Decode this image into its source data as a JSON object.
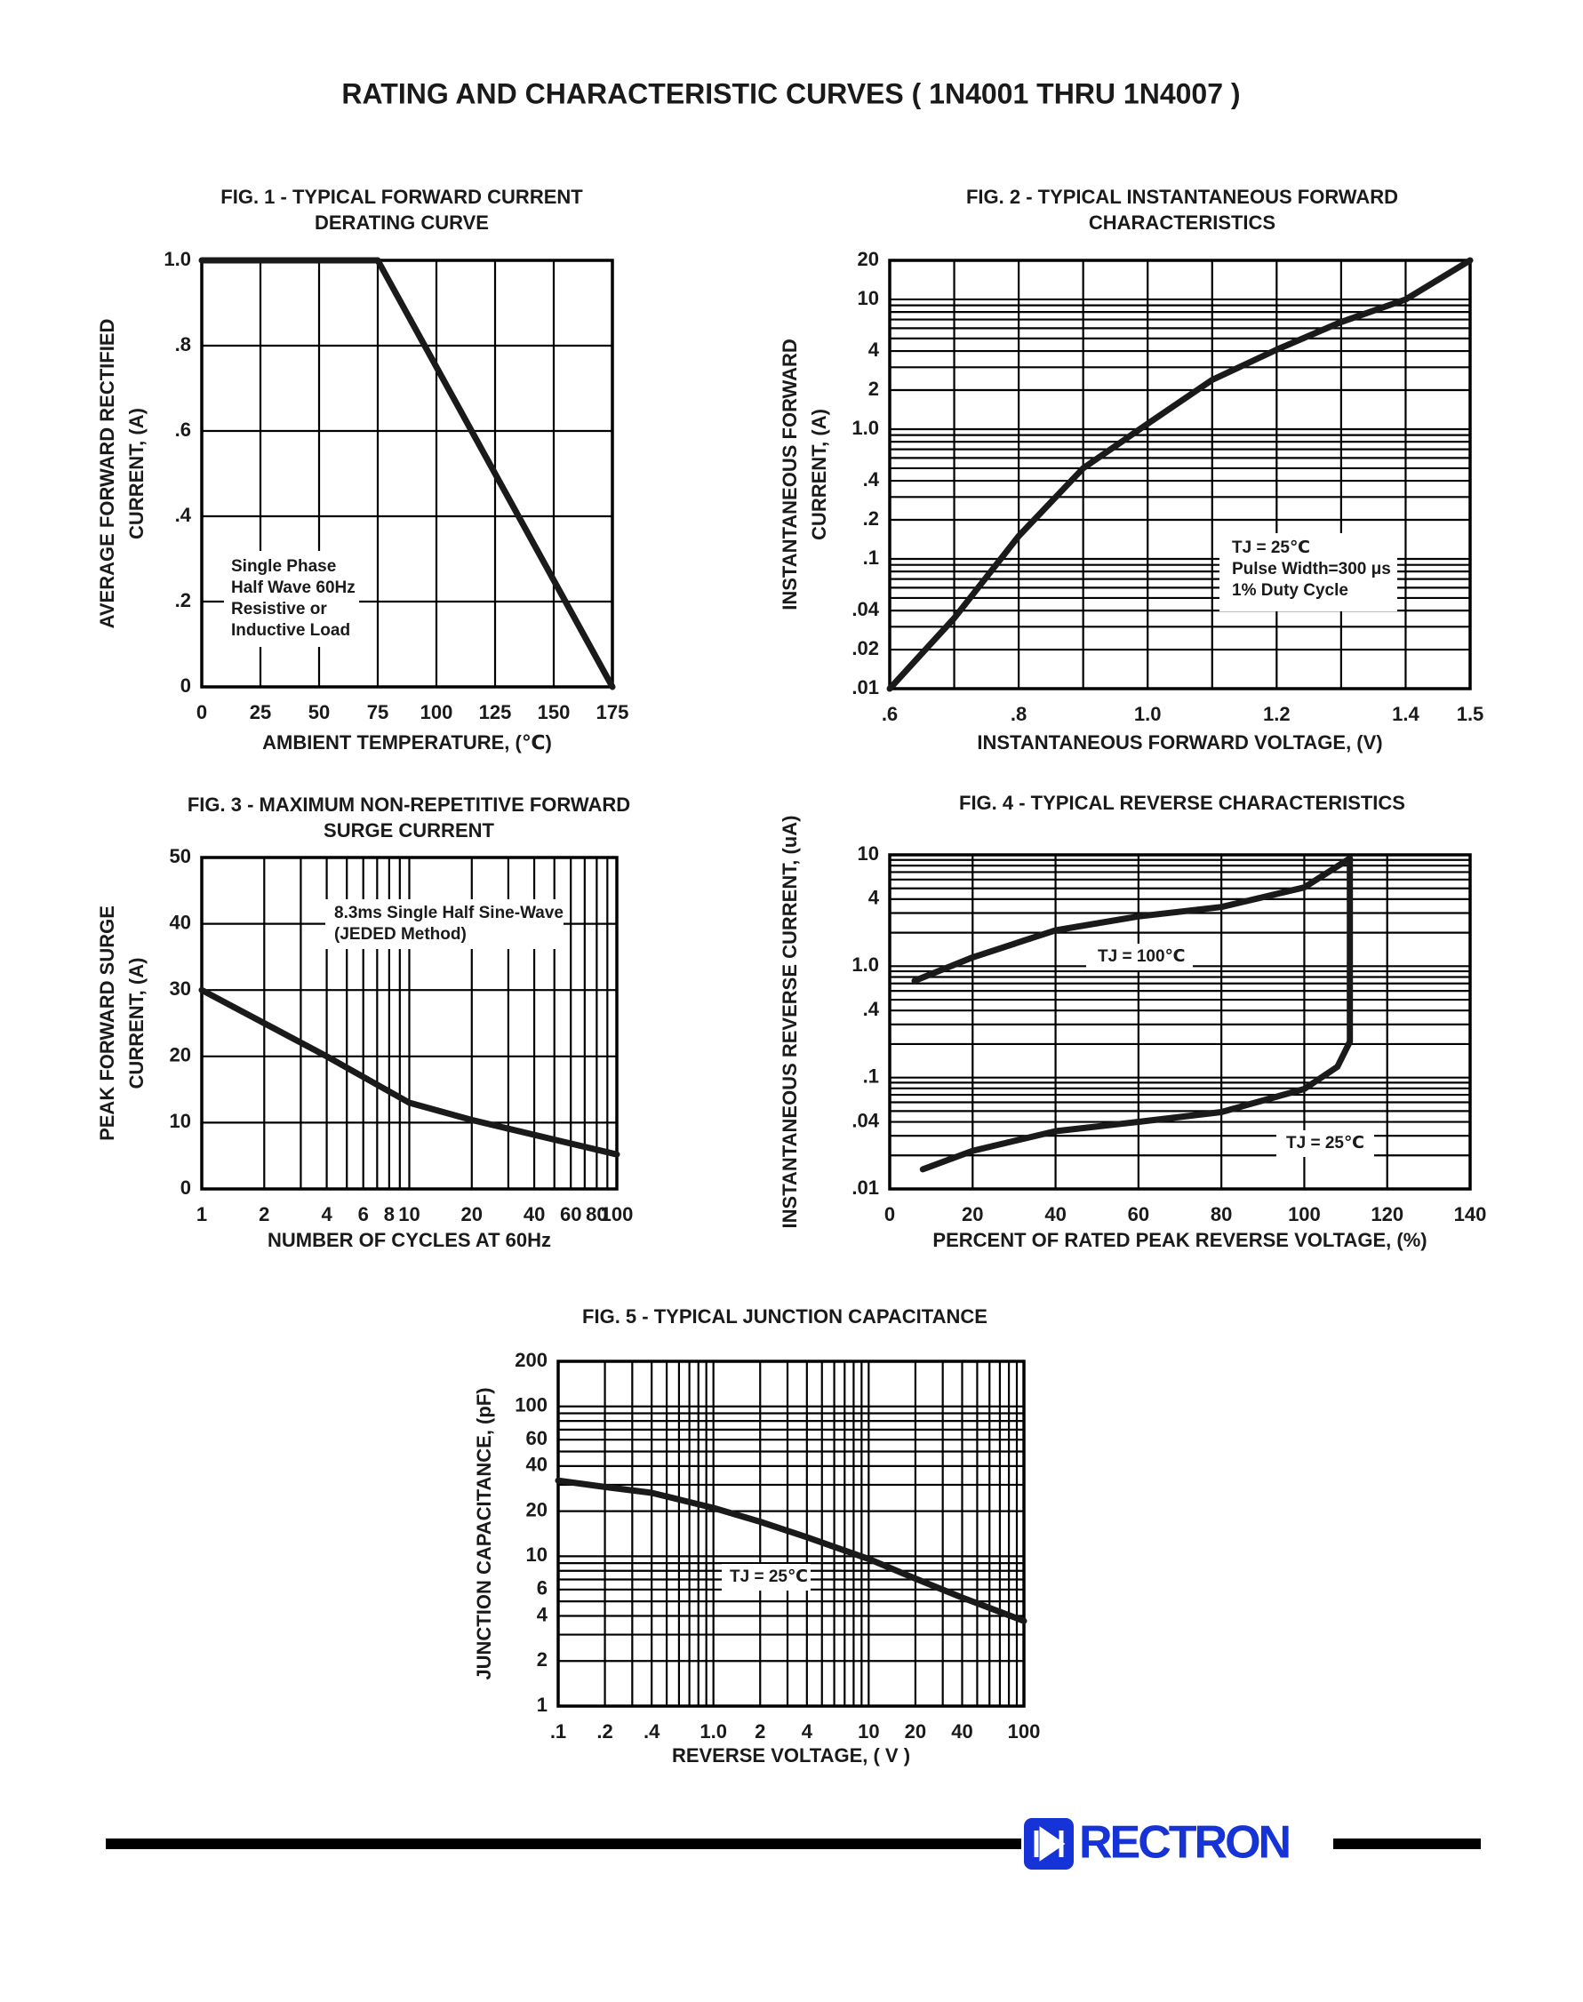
{
  "page": {
    "title": "RATING AND CHARACTERISTIC CURVES ( 1N4001 THRU 1N4007 )",
    "logo": "RECTRON"
  },
  "chart_data": [
    {
      "type": "line",
      "title": [
        "FIG. 1 - TYPICAL FORWARD CURRENT",
        "DERATING CURVE"
      ],
      "xlabel": "AMBIENT TEMPERATURE, (℃)",
      "ylabel": [
        "AVERAGE FORWARD RECTIFIED",
        "CURRENT, (A)"
      ],
      "xlim": [
        0,
        175
      ],
      "ylim": [
        0,
        1
      ],
      "xscale": "linear",
      "yscale": "linear",
      "xticks": [
        0,
        25,
        50,
        75,
        100,
        125,
        150,
        175
      ],
      "yticks": [
        0,
        {
          "value": 0.2,
          "label": ".2"
        },
        {
          "value": 0.4,
          "label": ".4"
        },
        {
          "value": 0.6,
          "label": ".6"
        },
        {
          "value": 0.8,
          "label": ".8"
        },
        {
          "value": 1,
          "label": "1.0"
        }
      ],
      "xgrid": [
        0,
        25,
        50,
        75,
        100,
        125,
        150,
        175
      ],
      "ygrid": [
        0,
        0.2,
        0.4,
        0.6,
        0.8,
        1
      ],
      "color": "#1a1a1a",
      "x": [
        0,
        75,
        175
      ],
      "values": [
        1,
        1,
        0
      ],
      "annotations": [
        "Single Phase",
        "Half Wave 60Hz",
        "Resistive or",
        "Inductive Load"
      ]
    },
    {
      "type": "line",
      "title": [
        "FIG. 2 - TYPICAL INSTANTANEOUS FORWARD",
        "CHARACTERISTICS"
      ],
      "xlabel": "INSTANTANEOUS FORWARD VOLTAGE, (V)",
      "ylabel": [
        "INSTANTANEOUS FORWARD",
        "CURRENT, (A)"
      ],
      "xlim": [
        0.6,
        1.5
      ],
      "ylim": [
        0.01,
        20
      ],
      "xscale": "linear",
      "yscale": "log",
      "xticks": [
        {
          "value": 0.6,
          "label": ".6"
        },
        {
          "value": 0.8,
          "label": ".8"
        },
        {
          "value": 1,
          "label": "1.0"
        },
        1.2,
        1.4,
        1.5
      ],
      "yticks": [
        {
          "value": 0.01,
          "label": ".01"
        },
        {
          "value": 0.02,
          "label": ".02"
        },
        {
          "value": 0.04,
          "label": ".04"
        },
        {
          "value": 0.1,
          "label": ".1"
        },
        {
          "value": 0.2,
          "label": ".2"
        },
        {
          "value": 0.4,
          "label": ".4"
        },
        {
          "value": 1,
          "label": "1.0"
        },
        2,
        4,
        10,
        20
      ],
      "xgrid": [
        0.6,
        0.7,
        0.8,
        0.9,
        1,
        1.1,
        1.2,
        1.3,
        1.4,
        1.5
      ],
      "ygrid": [
        0.01,
        0.02,
        0.03,
        0.04,
        0.05,
        0.06,
        0.07,
        0.08,
        0.09,
        0.1,
        0.2,
        0.3,
        0.4,
        0.5,
        0.6,
        0.7,
        0.8,
        0.9,
        1,
        2,
        3,
        4,
        5,
        6,
        7,
        8,
        9,
        10,
        20
      ],
      "color": "#1a1a1a",
      "x": [
        0.6,
        0.7,
        0.8,
        0.9,
        1,
        1.1,
        1.2,
        1.3,
        1.4,
        1.5
      ],
      "values": [
        0.01,
        0.035,
        0.15,
        0.5,
        1.1,
        2.4,
        4.1,
        6.7,
        10,
        20
      ],
      "annotations": [
        "TJ = 25℃",
        "Pulse Width=300 μs",
        "1% Duty Cycle"
      ]
    },
    {
      "type": "line",
      "title": [
        "FIG. 3 - MAXIMUM NON-REPETITIVE FORWARD",
        "SURGE CURRENT"
      ],
      "xlabel": "NUMBER OF CYCLES AT 60Hz",
      "ylabel": [
        "PEAK FORWARD SURGE",
        "CURRENT, (A)"
      ],
      "xlim": [
        1,
        100
      ],
      "ylim": [
        0,
        50
      ],
      "xscale": "log",
      "yscale": "linear",
      "xticks": [
        1,
        2,
        4,
        6,
        8,
        10,
        20,
        40,
        60,
        80,
        100
      ],
      "yticks": [
        0,
        10,
        20,
        30,
        40,
        50
      ],
      "xgrid": [
        1,
        2,
        3,
        4,
        5,
        6,
        7,
        8,
        9,
        10,
        20,
        30,
        40,
        50,
        60,
        70,
        80,
        90,
        100
      ],
      "ygrid": [
        0,
        10,
        20,
        30,
        40,
        50
      ],
      "color": "#1a1a1a",
      "x": [
        1,
        2,
        4,
        10,
        20,
        100
      ],
      "values": [
        30,
        25,
        20,
        13,
        10.4,
        5.2
      ],
      "annotations": [
        "8.3ms Single Half Sine-Wave",
        "(JEDED Method)"
      ]
    },
    {
      "type": "line",
      "title": [
        "FIG. 4 - TYPICAL REVERSE CHARACTERISTICS"
      ],
      "xlabel": "PERCENT OF RATED PEAK REVERSE VOLTAGE, (%)",
      "ylabel": [
        "INSTANTANEOUS REVERSE CURRENT, (uA)"
      ],
      "xlim": [
        0,
        140
      ],
      "ylim": [
        0.01,
        10
      ],
      "xscale": "linear",
      "yscale": "log",
      "xticks": [
        0,
        20,
        40,
        60,
        80,
        100,
        120,
        140
      ],
      "yticks": [
        {
          "value": 0.01,
          "label": ".01"
        },
        {
          "value": 0.04,
          "label": ".04"
        },
        {
          "value": 0.1,
          "label": ".1"
        },
        {
          "value": 0.4,
          "label": ".4"
        },
        {
          "value": 1,
          "label": "1.0"
        },
        4,
        10
      ],
      "xgrid": [
        0,
        20,
        40,
        60,
        80,
        100,
        120,
        140
      ],
      "ygrid": [
        0.01,
        0.02,
        0.03,
        0.04,
        0.05,
        0.06,
        0.07,
        0.08,
        0.09,
        0.1,
        0.2,
        0.3,
        0.4,
        0.5,
        0.6,
        0.7,
        0.8,
        0.9,
        1,
        2,
        3,
        4,
        5,
        6,
        7,
        8,
        9,
        10
      ],
      "series": [
        {
          "name": "TJ = 100℃",
          "color": "#1a1a1a",
          "x": [
            6,
            20,
            40,
            60,
            80,
            100,
            111
          ],
          "values": [
            0.74,
            1.2,
            2.1,
            2.8,
            3.4,
            5.1,
            9.3
          ]
        },
        {
          "name": "TJ = 25℃",
          "color": "#1a1a1a",
          "x": [
            8,
            20,
            40,
            60,
            80,
            100,
            108,
            111,
            111
          ],
          "values": [
            0.015,
            0.022,
            0.033,
            0.04,
            0.049,
            0.079,
            0.125,
            0.21,
            9.3
          ]
        }
      ]
    },
    {
      "type": "line",
      "title": [
        "FIG. 5 - TYPICAL JUNCTION CAPACITANCE"
      ],
      "xlabel": "REVERSE VOLTAGE, ( V )",
      "ylabel": [
        "JUNCTION CAPACITANCE, (pF)"
      ],
      "xlim": [
        0.1,
        100
      ],
      "ylim": [
        1,
        200
      ],
      "xscale": "log",
      "yscale": "log",
      "xticks": [
        {
          "value": 0.1,
          "label": ".1"
        },
        {
          "value": 0.2,
          "label": ".2"
        },
        {
          "value": 0.4,
          "label": ".4"
        },
        {
          "value": 1,
          "label": "1.0"
        },
        2,
        4,
        10,
        20,
        40,
        100
      ],
      "yticks": [
        1,
        2,
        4,
        6,
        10,
        20,
        40,
        60,
        100,
        200
      ],
      "xgrid": [
        0.1,
        0.2,
        0.3,
        0.4,
        0.5,
        0.6,
        0.7,
        0.8,
        0.9,
        1,
        2,
        3,
        4,
        5,
        6,
        7,
        8,
        9,
        10,
        20,
        30,
        40,
        50,
        60,
        70,
        80,
        90,
        100
      ],
      "ygrid": [
        1,
        2,
        3,
        4,
        5,
        6,
        7,
        8,
        9,
        10,
        20,
        30,
        40,
        50,
        60,
        70,
        80,
        90,
        100,
        200
      ],
      "color": "#1a1a1a",
      "x": [
        0.1,
        0.2,
        0.4,
        1,
        2,
        4,
        10,
        20,
        40,
        100
      ],
      "values": [
        32,
        29,
        26.5,
        21,
        17,
        13.4,
        9.6,
        7.1,
        5.3,
        3.7
      ],
      "annotations": [
        "TJ = 25℃"
      ]
    }
  ]
}
